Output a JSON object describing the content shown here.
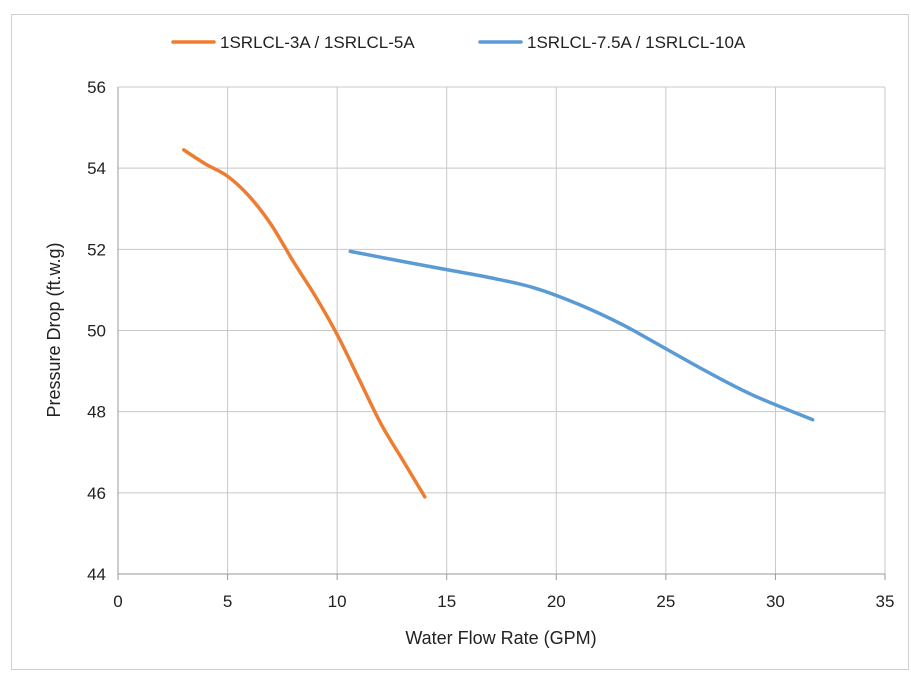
{
  "chart_data": {
    "type": "line",
    "title": "",
    "xlabel": "Water Flow Rate (GPM)",
    "ylabel": "Pressure Drop (ft.w.g)",
    "xlim": [
      0,
      35
    ],
    "ylim": [
      44,
      56
    ],
    "x_ticks": [
      "0",
      "5",
      "10",
      "15",
      "20",
      "25",
      "30",
      "35"
    ],
    "y_ticks": [
      "44",
      "46",
      "48",
      "50",
      "52",
      "54",
      "56"
    ],
    "grid": true,
    "legend_position": "top",
    "series": [
      {
        "name": "1SRLCL-3A / 1SRLCL-5A",
        "color": "#ED7D31",
        "x": [
          3,
          4,
          5,
          6,
          7,
          8,
          9,
          10,
          11,
          12,
          13,
          14
        ],
        "y": [
          54.45,
          54.1,
          53.8,
          53.3,
          52.6,
          51.7,
          50.85,
          49.9,
          48.8,
          47.7,
          46.8,
          45.9
        ]
      },
      {
        "name": "1SRLCL-7.5A / 1SRLCL-10A",
        "color": "#5B9BD5",
        "x": [
          10.6,
          13,
          15,
          17,
          19,
          21,
          23,
          25,
          27,
          29,
          31.7
        ],
        "y": [
          51.95,
          51.7,
          51.5,
          51.3,
          51.05,
          50.65,
          50.15,
          49.55,
          48.95,
          48.4,
          47.8
        ]
      }
    ]
  }
}
